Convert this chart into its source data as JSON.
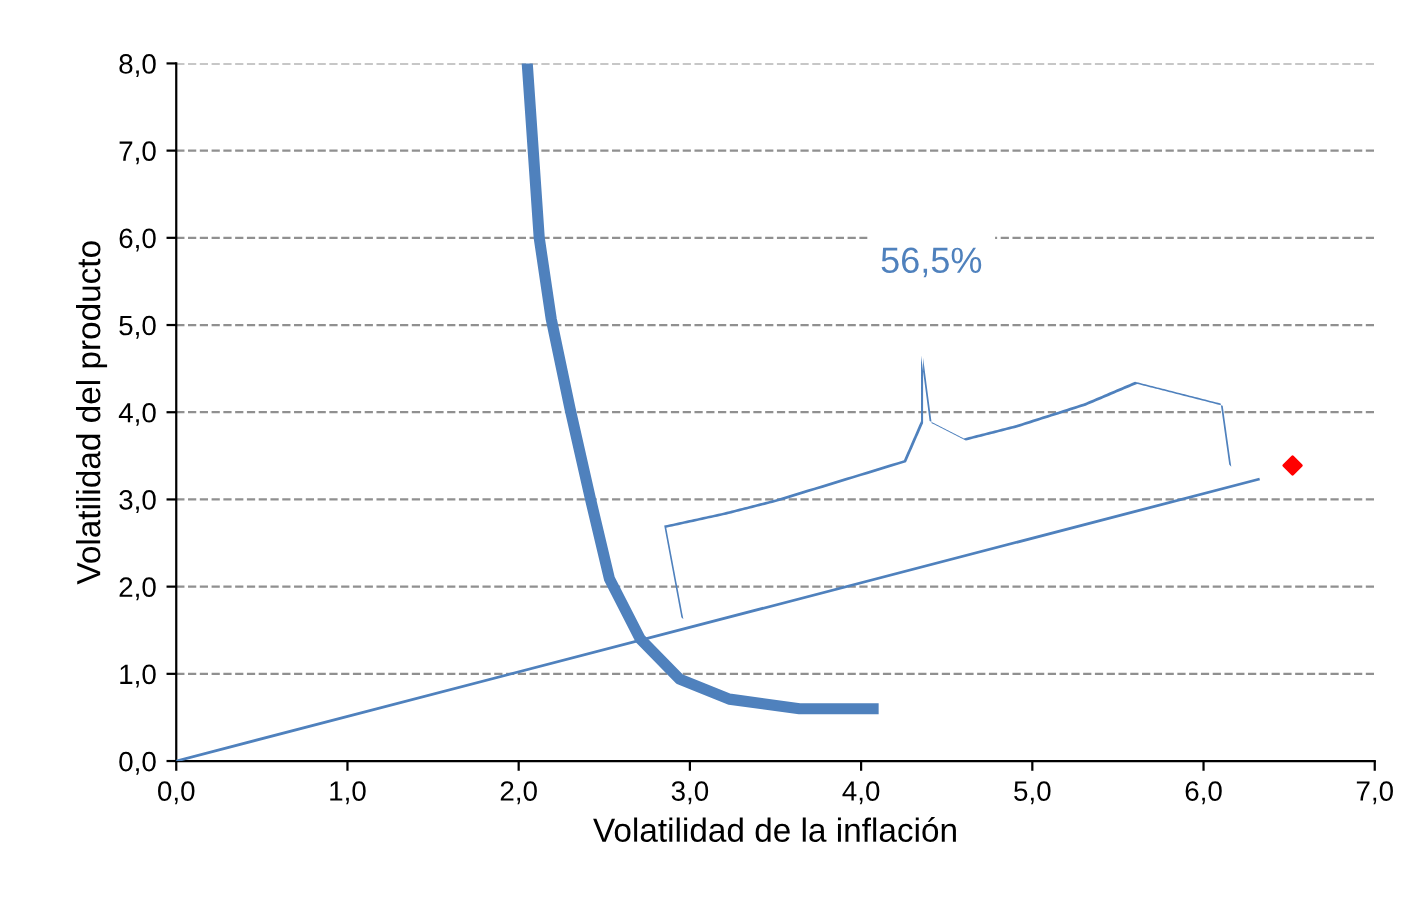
{
  "chart_data": {
    "type": "line",
    "xlabel": "Volatilidad de la inflación",
    "ylabel": "Volatilidad del producto",
    "xlim": [
      0,
      7
    ],
    "ylim": [
      0,
      8
    ],
    "xticks": [
      {
        "value": 0,
        "label": "0,0"
      },
      {
        "value": 1,
        "label": "1,0"
      },
      {
        "value": 2,
        "label": "2,0"
      },
      {
        "value": 3,
        "label": "3,0"
      },
      {
        "value": 4,
        "label": "4,0"
      },
      {
        "value": 5,
        "label": "5,0"
      },
      {
        "value": 6,
        "label": "6,0"
      },
      {
        "value": 7,
        "label": "7,0"
      }
    ],
    "yticks": [
      {
        "value": 0,
        "label": "0,0"
      },
      {
        "value": 1,
        "label": "1,0"
      },
      {
        "value": 2,
        "label": "2,0"
      },
      {
        "value": 3,
        "label": "3,0"
      },
      {
        "value": 4,
        "label": "4,0"
      },
      {
        "value": 5,
        "label": "5,0"
      },
      {
        "value": 6,
        "label": "6,0"
      },
      {
        "value": 7,
        "label": "7,0"
      },
      {
        "value": 8,
        "label": "8,0"
      }
    ],
    "grid": "y",
    "marker": "none",
    "line_style": "solid",
    "series": [
      {
        "color": "#4f81bd",
        "x": [
          2.05,
          2.12,
          2.19,
          2.3,
          2.42,
          2.53,
          2.71,
          2.94,
          3.23,
          3.64,
          4.07
        ],
        "values": [
          8.0,
          6.0,
          5.07,
          4.04,
          3.0,
          2.09,
          1.4,
          0.94,
          0.71,
          0.6,
          0.6
        ]
      },
      {
        "color": "#4f81bd",
        "x": [
          0,
          6.32
        ],
        "values": [
          0,
          3.23
        ]
      },
      {
        "type": "scatter",
        "color": "#ff0000",
        "marker": "diamond",
        "x": [
          6.52
        ],
        "values": [
          3.39
        ]
      }
    ],
    "annotations": [
      "56,5%"
    ]
  }
}
